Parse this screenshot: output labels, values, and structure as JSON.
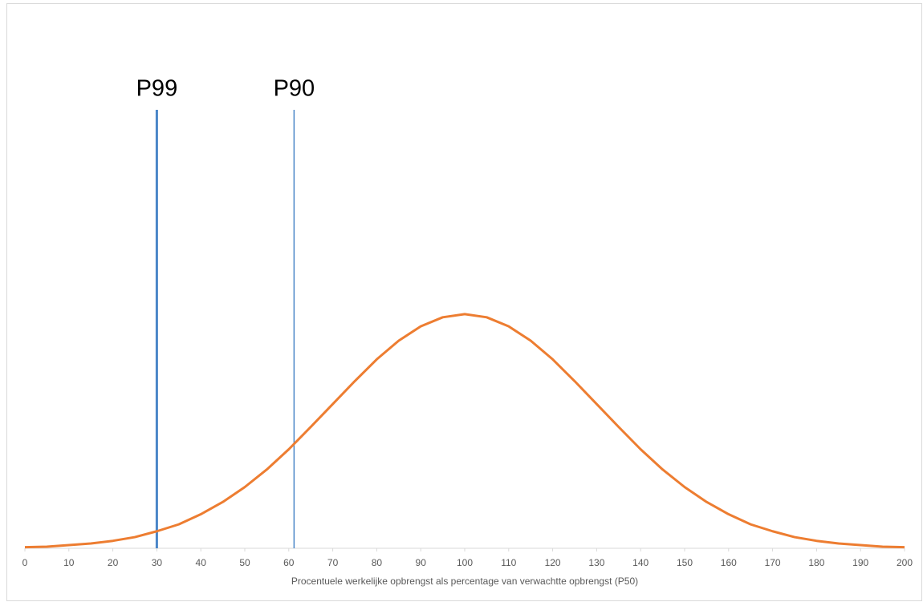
{
  "chart_data": {
    "type": "line",
    "x_label": "Procentuele werkelijke opbrengst als percentage van verwachtte opbrengst (P50)",
    "x": [
      0,
      5,
      10,
      15,
      20,
      25,
      30,
      35,
      40,
      45,
      50,
      55,
      60,
      65,
      70,
      75,
      80,
      85,
      90,
      95,
      100,
      105,
      110,
      115,
      120,
      125,
      130,
      135,
      140,
      145,
      150,
      155,
      160,
      165,
      170,
      175,
      180,
      185,
      190,
      195,
      200
    ],
    "series": [
      {
        "color": "#ed7d31",
        "values": [
          0.2,
          0.3,
          0.6,
          0.9,
          1.4,
          2.1,
          3.2,
          4.5,
          6.4,
          8.7,
          11.5,
          14.8,
          18.6,
          22.8,
          27.1,
          31.4,
          35.5,
          39.0,
          41.7,
          43.4,
          44.0,
          43.4,
          41.7,
          39.0,
          35.5,
          31.4,
          27.1,
          22.8,
          18.6,
          14.8,
          11.5,
          8.7,
          6.4,
          4.5,
          3.2,
          2.1,
          1.4,
          0.9,
          0.6,
          0.3,
          0.2
        ]
      }
    ],
    "xlim": [
      0,
      200
    ],
    "xticks": [
      0,
      10,
      20,
      30,
      40,
      50,
      60,
      70,
      80,
      90,
      100,
      110,
      120,
      130,
      140,
      150,
      160,
      170,
      180,
      190,
      200
    ],
    "ylim": [
      0,
      100
    ],
    "markers": [
      {
        "label": "P99",
        "x": 30,
        "color": "#4a86c8",
        "line_width": 3
      },
      {
        "label": "P90",
        "x": 61.2,
        "color": "#4a86c8",
        "line_width": 1.5
      }
    ]
  }
}
